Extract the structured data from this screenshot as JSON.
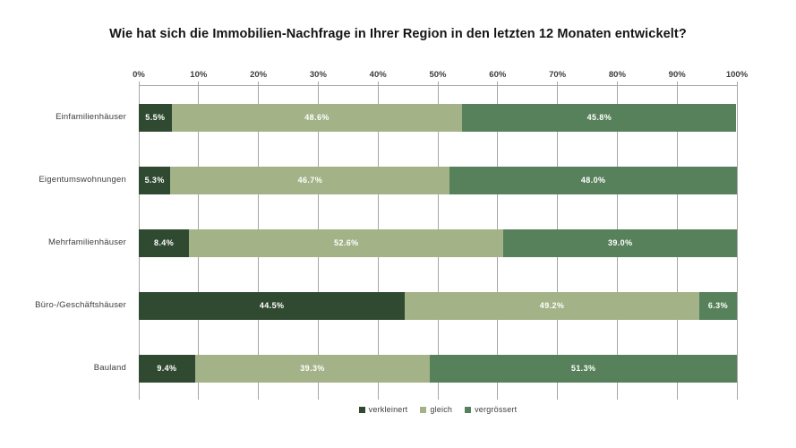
{
  "chart_data": {
    "type": "bar",
    "orientation": "horizontal",
    "stacked": true,
    "title": "Wie hat sich die Immobilien-Nachfrage in Ihrer Region in den letzten 12 Monaten entwickelt?",
    "categories": [
      "Einfamilienhäuser",
      "Eigentumswohnungen",
      "Mehrfamilienhäuser",
      "Büro-/Geschäftshäuser",
      "Bauland"
    ],
    "series": [
      {
        "name": "verkleinert",
        "color": "#304A32",
        "values": [
          5.5,
          5.3,
          8.4,
          44.5,
          9.4
        ]
      },
      {
        "name": "gleich",
        "color": "#A3B287",
        "values": [
          48.6,
          46.7,
          52.6,
          49.2,
          39.3
        ]
      },
      {
        "name": "vergrössert",
        "color": "#57815A",
        "values": [
          45.8,
          48.0,
          39.0,
          6.3,
          51.3
        ]
      }
    ],
    "value_labels": [
      [
        "5.5%",
        "48.6%",
        "45.8%"
      ],
      [
        "5.3%",
        "46.7%",
        "48.0%"
      ],
      [
        "8.4%",
        "52.6%",
        "39.0%"
      ],
      [
        "44.5%",
        "49.2%",
        "6.3%"
      ],
      [
        "9.4%",
        "39.3%",
        "51.3%"
      ]
    ],
    "x_ticks": [
      "0%",
      "10%",
      "20%",
      "30%",
      "40%",
      "50%",
      "60%",
      "70%",
      "80%",
      "90%",
      "100%"
    ],
    "xlim": [
      0,
      100
    ],
    "grid": true,
    "grid_color": "#a6a6a6",
    "value_label_color": "#ffffff",
    "legend_position": "bottom",
    "legend_entries": [
      "verkleinert",
      "gleich",
      "vergrössert"
    ]
  }
}
